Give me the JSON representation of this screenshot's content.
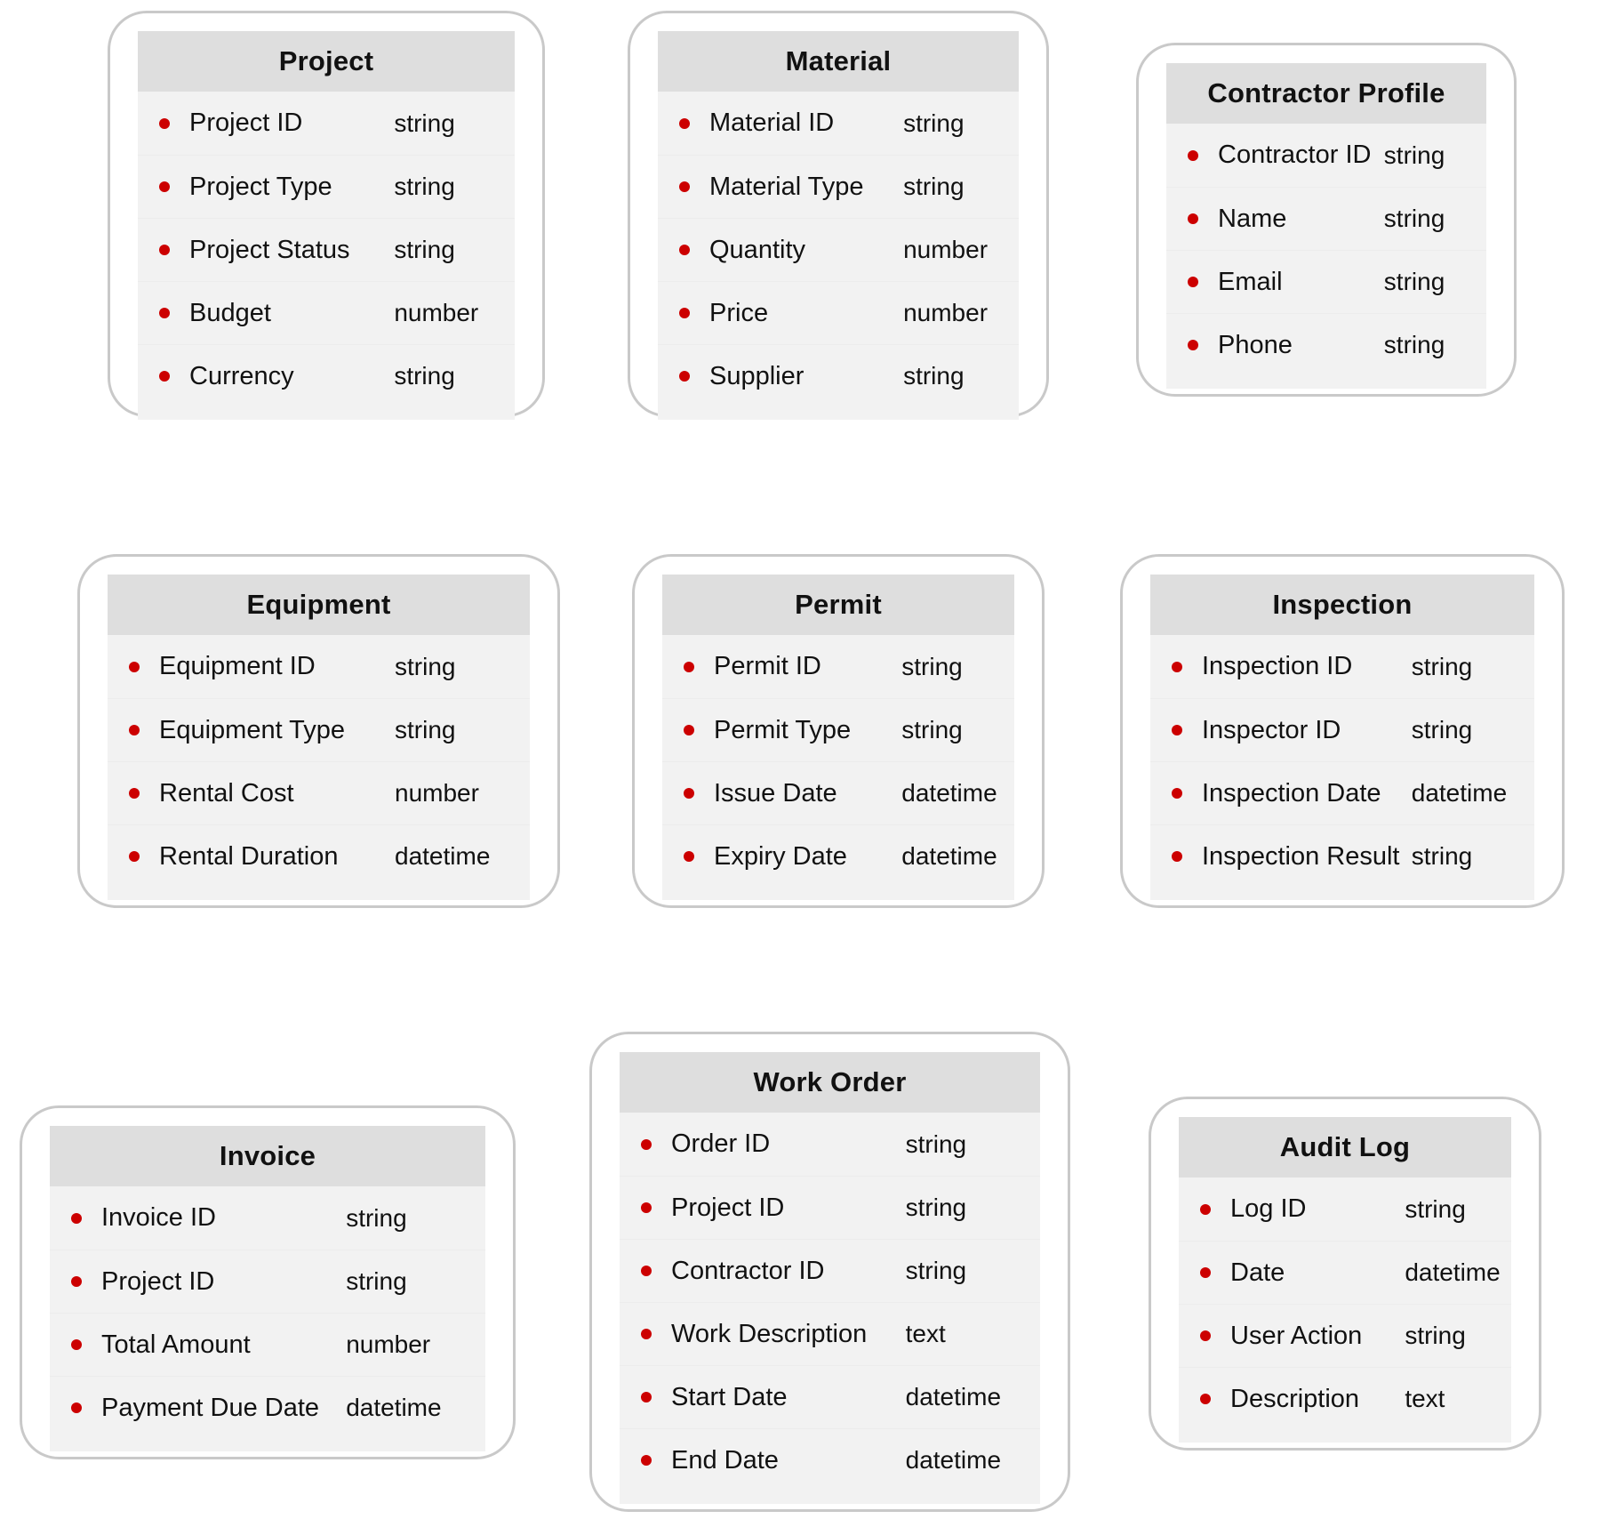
{
  "diagram": {
    "kind": "entity-relationship-schema",
    "colors": {
      "entity_border": "#c9c9c9",
      "header_background": "#dedede",
      "row_background": "#f2f2f2",
      "bullet": "#cc0000",
      "text": "#111111"
    },
    "entities": [
      {
        "name": "Project",
        "fields": [
          {
            "name": "Project ID",
            "type": "string"
          },
          {
            "name": "Project Type",
            "type": "string"
          },
          {
            "name": "Project Status",
            "type": "string"
          },
          {
            "name": "Budget",
            "type": "number"
          },
          {
            "name": "Currency",
            "type": "string"
          }
        ]
      },
      {
        "name": "Material",
        "fields": [
          {
            "name": "Material ID",
            "type": "string"
          },
          {
            "name": "Material Type",
            "type": "string"
          },
          {
            "name": "Quantity",
            "type": "number"
          },
          {
            "name": "Price",
            "type": "number"
          },
          {
            "name": "Supplier",
            "type": "string"
          }
        ]
      },
      {
        "name": "Contractor Profile",
        "fields": [
          {
            "name": "Contractor ID",
            "type": "string"
          },
          {
            "name": "Name",
            "type": "string"
          },
          {
            "name": "Email",
            "type": "string"
          },
          {
            "name": "Phone",
            "type": "string"
          }
        ]
      },
      {
        "name": "Equipment",
        "fields": [
          {
            "name": "Equipment ID",
            "type": "string"
          },
          {
            "name": "Equipment Type",
            "type": "string"
          },
          {
            "name": "Rental Cost",
            "type": "number"
          },
          {
            "name": "Rental Duration",
            "type": "datetime"
          }
        ]
      },
      {
        "name": "Permit",
        "fields": [
          {
            "name": "Permit ID",
            "type": "string"
          },
          {
            "name": "Permit Type",
            "type": "string"
          },
          {
            "name": "Issue Date",
            "type": "datetime"
          },
          {
            "name": "Expiry Date",
            "type": "datetime"
          }
        ]
      },
      {
        "name": "Inspection",
        "fields": [
          {
            "name": "Inspection ID",
            "type": "string"
          },
          {
            "name": "Inspector ID",
            "type": "string"
          },
          {
            "name": "Inspection Date",
            "type": "datetime"
          },
          {
            "name": "Inspection Result",
            "type": "string"
          }
        ]
      },
      {
        "name": "Invoice",
        "fields": [
          {
            "name": "Invoice ID",
            "type": "string"
          },
          {
            "name": "Project ID",
            "type": "string"
          },
          {
            "name": "Total Amount",
            "type": "number"
          },
          {
            "name": "Payment Due Date",
            "type": "datetime"
          }
        ]
      },
      {
        "name": "Work Order",
        "fields": [
          {
            "name": "Order ID",
            "type": "string"
          },
          {
            "name": "Project ID",
            "type": "string"
          },
          {
            "name": "Contractor ID",
            "type": "string"
          },
          {
            "name": "Work Description",
            "type": "text"
          },
          {
            "name": "Start Date",
            "type": "datetime"
          },
          {
            "name": "End Date",
            "type": "datetime"
          }
        ]
      },
      {
        "name": "Audit Log",
        "fields": [
          {
            "name": "Log ID",
            "type": "string"
          },
          {
            "name": "Date",
            "type": "datetime"
          },
          {
            "name": "User Action",
            "type": "string"
          },
          {
            "name": "Description",
            "type": "text"
          }
        ]
      }
    ]
  }
}
